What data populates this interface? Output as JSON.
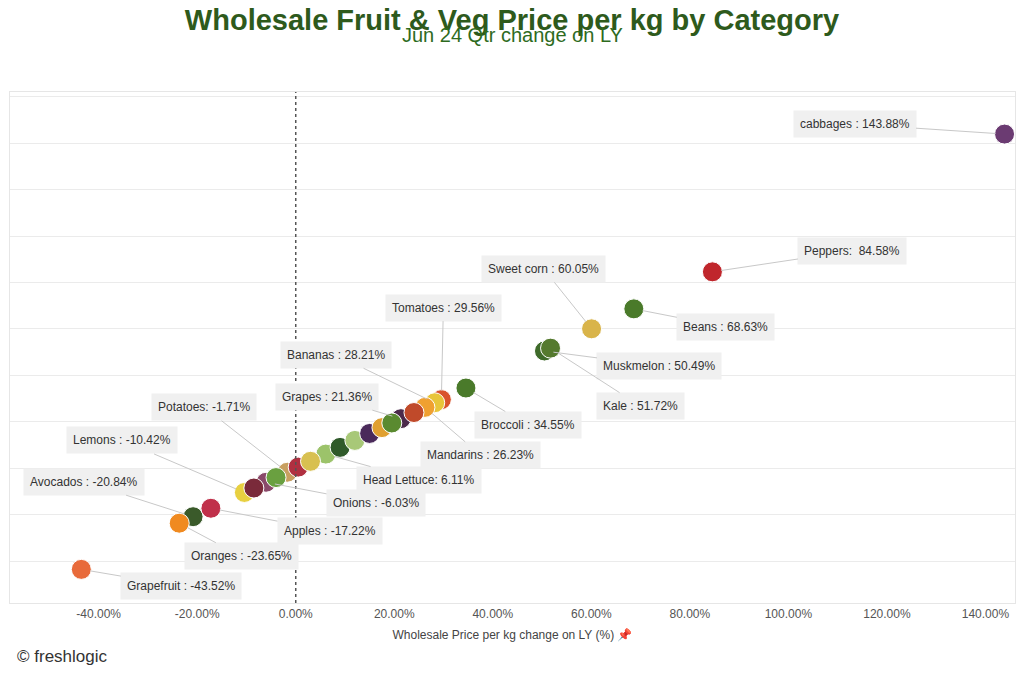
{
  "chart_data": {
    "type": "scatter",
    "title": "Wholesale Fruit & Veg Price per kg by Category",
    "subtitle": "Jun 24 Qtr change on LY",
    "x_label": "Wholesale Price per kg change on LY (%) 📌",
    "footer": "© freshlogic",
    "x": [
      143.88,
      84.58,
      60.05,
      68.63,
      29.56,
      50.49,
      51.72,
      28.21,
      21.36,
      34.55,
      -1.71,
      26.23,
      -10.42,
      6.11,
      -20.84,
      -6.03,
      -17.22,
      -23.65,
      -43.52,
      -8.5,
      -4.0,
      0.5,
      3.0,
      9.0,
      12.0,
      15.0,
      17.5,
      19.5,
      24.0
    ],
    "y": [
      143.88,
      84.58,
      60.05,
      68.63,
      29.56,
      50.49,
      51.72,
      28.21,
      21.36,
      34.55,
      -1.71,
      26.23,
      -10.42,
      6.11,
      -20.84,
      -6.03,
      -17.22,
      -23.65,
      -43.52,
      -8.5,
      -4.0,
      0.5,
      3.0,
      9.0,
      12.0,
      15.0,
      17.5,
      19.5,
      24.0
    ],
    "labels": [
      "cabbages : 143.88%",
      "Peppers:  84.58%",
      "Sweet corn : 60.05%",
      "Beans : 68.63%",
      "Tomatoes : 29.56%",
      "Muskmelon : 50.49%",
      "Kale : 51.72%",
      "Bananas : 28.21%",
      "Grapes : 21.36%",
      "Broccoli : 34.55%",
      "Potatoes: -1.71%",
      "Mandarins : 26.23%",
      "Lemons : -10.42%",
      "Head Lettuce: 6.11%",
      "Avocados : -20.84%",
      "Onions : -6.03%",
      "Apples : -17.22%",
      "Oranges : -23.65%",
      "Grapefruit : -43.52%",
      null,
      null,
      null,
      null,
      null,
      null,
      null,
      null,
      null,
      null
    ],
    "colors": [
      "#6b3b72",
      "#c0262c",
      "#d9b44a",
      "#4a7a2a",
      "#d9532c",
      "#3f6b2a",
      "#557a2e",
      "#e8c53a",
      "#4b2a4a",
      "#4a7a2a",
      "#c8a060",
      "#f0a030",
      "#e8d040",
      "#9cc36a",
      "#3a5a2a",
      "#8a4a6a",
      "#c0304a",
      "#f08a20",
      "#e86a3a",
      "#7a2a3a",
      "#6aa040",
      "#b03040",
      "#d8c050",
      "#2f5a2a",
      "#a8c878",
      "#4a2a5a",
      "#e0a030",
      "#5a8a30",
      "#c04a2a"
    ],
    "marker": "circle",
    "data_labels": true,
    "xlim": [
      -58,
      146
    ],
    "xticks": [
      {
        "value": -40,
        "label": "-40.00%"
      },
      {
        "value": -20,
        "label": "-20.00%"
      },
      {
        "value": 0,
        "label": "0.00%"
      },
      {
        "value": 20,
        "label": "20.00%"
      },
      {
        "value": 40,
        "label": "40.00%"
      },
      {
        "value": 60,
        "label": "60.00%"
      },
      {
        "value": 80,
        "label": "80.00%"
      },
      {
        "value": 100,
        "label": "100.00%"
      },
      {
        "value": 120,
        "label": "120.00%"
      },
      {
        "value": 140,
        "label": "140.00%"
      }
    ],
    "ylim": [
      -58,
      162
    ],
    "yticks": [
      -40,
      -20,
      0,
      20,
      40,
      60,
      80,
      100,
      120,
      140,
      160
    ],
    "reference_x": 0,
    "grid": true,
    "tick_labels": "x"
  }
}
